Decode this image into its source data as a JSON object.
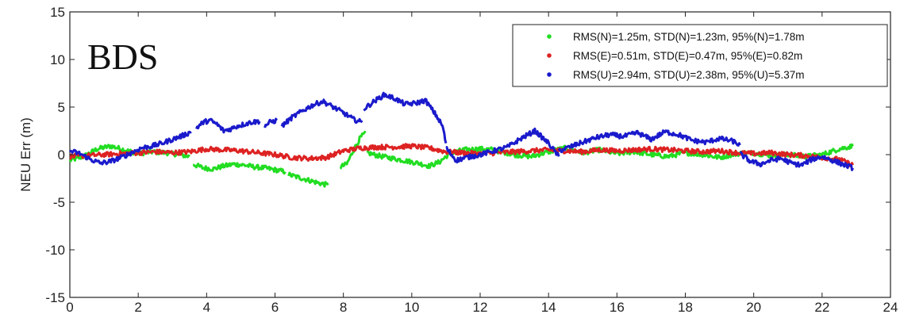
{
  "chart_data": {
    "type": "line",
    "ylabel": "NEU Err (m)",
    "xlim": [
      0,
      24
    ],
    "ylim": [
      -15,
      15
    ],
    "xticks": [
      0,
      2,
      4,
      6,
      8,
      10,
      12,
      14,
      16,
      18,
      20,
      22,
      24
    ],
    "yticks": [
      -15,
      -10,
      -5,
      0,
      5,
      10,
      15
    ],
    "grid": false,
    "legend_position": "top-right",
    "annotation": "BDS",
    "series": [
      {
        "name": "RMS(N)=1.25m, STD(N)=1.23m, 95%(N)=1.78m",
        "color": "#22dd22",
        "segments": [
          {
            "x": [
              0,
              0.4,
              0.8,
              1.2,
              1.6,
              2.0,
              2.4,
              2.8,
              3.2,
              3.5
            ],
            "y": [
              -0.6,
              -0.2,
              0.6,
              0.9,
              0.5,
              0.1,
              0.3,
              0.2,
              0.0,
              -0.2
            ]
          },
          {
            "x": [
              3.6,
              3.9,
              4.2,
              4.5,
              4.8,
              5.1,
              5.4,
              5.7,
              6.0,
              6.3
            ],
            "y": [
              -1.0,
              -1.4,
              -1.5,
              -1.2,
              -1.0,
              -1.1,
              -1.3,
              -1.4,
              -1.6,
              -1.8
            ]
          },
          {
            "x": [
              6.4,
              6.7,
              7.0,
              7.3,
              7.55
            ],
            "y": [
              -2.1,
              -2.4,
              -2.7,
              -3.0,
              -3.2
            ]
          },
          {
            "x": [
              7.9,
              8.1,
              8.3,
              8.5,
              8.65
            ],
            "y": [
              -1.3,
              -1.0,
              0.5,
              1.8,
              2.3
            ]
          },
          {
            "x": [
              8.7,
              9.0,
              9.3,
              9.6,
              9.9,
              10.2,
              10.5,
              10.8,
              11.1,
              11.5,
              12.0,
              12.5
            ],
            "y": [
              0.2,
              -0.1,
              -0.3,
              -0.5,
              -0.7,
              -0.9,
              -1.2,
              -0.8,
              0.1,
              0.5,
              0.6,
              0.5
            ]
          },
          {
            "x": [
              12.5,
              13.0,
              13.5,
              14.0,
              14.5,
              15.0,
              15.5,
              16.0,
              16.5,
              17.0,
              17.5,
              18.0,
              18.5,
              19.0,
              19.5,
              20.0,
              20.5,
              21.0,
              21.5,
              22.0,
              22.5,
              22.9
            ],
            "y": [
              0.4,
              0.0,
              -0.2,
              0.3,
              0.7,
              0.2,
              0.5,
              0.1,
              0.3,
              0.0,
              -0.2,
              0.2,
              0.0,
              -0.3,
              0.1,
              0.2,
              -0.1,
              0.0,
              -0.2,
              0.0,
              0.6,
              0.9
            ]
          }
        ]
      },
      {
        "name": "RMS(E)=0.51m, STD(E)=0.47m, 95%(E)=0.82m",
        "color": "#dd2222",
        "segments": [
          {
            "x": [
              0,
              0.5,
              1.0,
              1.5,
              2.0,
              2.5,
              3.0,
              3.5,
              4.0,
              4.5,
              5.0,
              5.5,
              6.0,
              6.5,
              7.0,
              7.5,
              8.0,
              8.5,
              9.0,
              9.5,
              10.0,
              10.5,
              11.0,
              11.5,
              12.0,
              12.5,
              13.0,
              13.5,
              14.0,
              14.5,
              15.0,
              15.5,
              16.0,
              16.5,
              17.0,
              17.5,
              18.0,
              18.5,
              19.0,
              19.5,
              20.0,
              20.5,
              21.0,
              21.5,
              22.0,
              22.5,
              22.9
            ],
            "y": [
              -0.2,
              -0.1,
              0.0,
              0.1,
              0.2,
              0.3,
              0.2,
              0.3,
              0.6,
              0.5,
              0.4,
              0.2,
              0.0,
              -0.3,
              -0.4,
              -0.3,
              0.4,
              0.7,
              0.8,
              0.8,
              0.9,
              0.7,
              0.3,
              0.2,
              0.1,
              0.2,
              0.3,
              0.4,
              0.5,
              0.4,
              0.3,
              0.5,
              0.4,
              0.5,
              0.6,
              0.5,
              0.4,
              0.3,
              0.4,
              0.2,
              0.1,
              0.2,
              0.0,
              -0.1,
              -0.3,
              -0.5,
              -1.1
            ]
          }
        ]
      },
      {
        "name": "RMS(U)=2.94m, STD(U)=2.38m, 95%(U)=5.37m",
        "color": "#1a1acc",
        "segments": [
          {
            "x": [
              0,
              0.3,
              0.6,
              0.9,
              1.2,
              1.5,
              1.8,
              2.1,
              2.4,
              2.7,
              3.0,
              3.3,
              3.55
            ],
            "y": [
              0.4,
              0.1,
              -0.5,
              -0.9,
              -0.7,
              -0.3,
              0.2,
              0.7,
              0.9,
              1.2,
              1.6,
              2.0,
              2.4
            ]
          },
          {
            "x": [
              3.7,
              3.9,
              4.1,
              4.3,
              4.5,
              4.7,
              4.9,
              5.1,
              5.3,
              5.55
            ],
            "y": [
              2.8,
              3.4,
              3.6,
              3.2,
              2.5,
              2.7,
              3.0,
              3.2,
              3.4,
              3.5
            ]
          },
          {
            "x": [
              5.7,
              5.85,
              6.05
            ],
            "y": [
              3.0,
              3.4,
              3.6
            ]
          },
          {
            "x": [
              6.2,
              6.5,
              6.8,
              7.1,
              7.4,
              7.7,
              8.0,
              8.3,
              8.55
            ],
            "y": [
              3.0,
              3.9,
              4.6,
              5.2,
              5.6,
              5.0,
              4.4,
              3.7,
              3.4
            ]
          },
          {
            "x": [
              8.6,
              8.9,
              9.2,
              9.5,
              9.8,
              10.1,
              10.4,
              10.7,
              10.9,
              11.0
            ],
            "y": [
              4.8,
              5.6,
              6.3,
              5.9,
              5.3,
              5.4,
              5.7,
              4.2,
              3.0,
              1.2
            ]
          },
          {
            "x": [
              11.0,
              11.3,
              11.6,
              12.0,
              12.4,
              12.8,
              13.2,
              13.6,
              14.0,
              14.3
            ],
            "y": [
              0.7,
              -0.6,
              -0.3,
              0.0,
              0.4,
              0.8,
              1.7,
              2.5,
              1.2,
              -0.2
            ]
          },
          {
            "x": [
              14.3,
              14.7,
              15.0,
              15.4,
              15.8,
              16.2,
              16.6,
              17.0,
              17.4,
              17.8,
              18.2,
              18.6,
              19.0,
              19.4,
              19.6
            ],
            "y": [
              0.4,
              0.9,
              1.3,
              1.8,
              2.1,
              1.9,
              2.3,
              1.6,
              2.4,
              2.1,
              1.5,
              1.3,
              1.7,
              1.4,
              1.0
            ]
          },
          {
            "x": [
              19.6,
              19.9,
              20.2,
              20.5,
              20.8,
              21.1,
              21.4,
              21.7,
              22.0,
              22.3,
              22.6,
              22.9
            ],
            "y": [
              0.1,
              -0.7,
              -1.0,
              -0.6,
              -0.4,
              -0.9,
              -1.1,
              -0.5,
              -0.2,
              -0.6,
              -1.0,
              -1.4
            ]
          }
        ]
      }
    ]
  }
}
